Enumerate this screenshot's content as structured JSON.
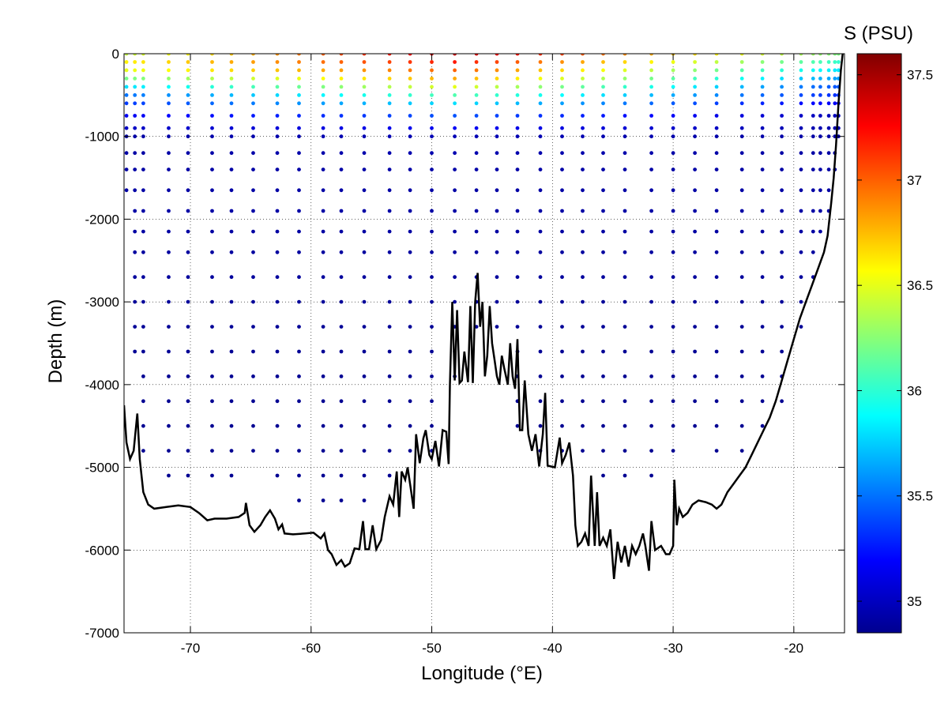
{
  "chart_data": {
    "type": "scatter",
    "xlabel": "Longitude (°E)",
    "ylabel": "Depth (m)",
    "colorbar_label": "S (PSU)",
    "xlim": [
      -75.5,
      -15.8
    ],
    "ylim": [
      -7000,
      0
    ],
    "xticks": [
      -70,
      -60,
      -50,
      -40,
      -30,
      -20
    ],
    "yticks": [
      0,
      -1000,
      -2000,
      -3000,
      -4000,
      -5000,
      -6000,
      -7000
    ],
    "clim": [
      34.85,
      37.6
    ],
    "cticks": [
      35,
      35.5,
      36,
      36.5,
      37,
      37.5
    ],
    "grid": true,
    "colormap": "jet",
    "stations": [
      -75.3,
      -74.6,
      -73.9,
      -71.8,
      -70.2,
      -68.2,
      -66.6,
      -64.8,
      -62.8,
      -61.0,
      -59.0,
      -57.5,
      -55.6,
      -53.5,
      -51.8,
      -50.0,
      -48.1,
      -46.3,
      -44.6,
      -42.9,
      -41.0,
      -39.2,
      -37.5,
      -35.8,
      -34.0,
      -31.8,
      -30.0,
      -28.2,
      -26.4,
      -24.3,
      -22.6,
      -21.0,
      -19.4,
      -18.4,
      -17.8,
      -17.1,
      -16.6,
      -16.3
    ],
    "station_max_depth": [
      1700,
      3750,
      5000,
      5230,
      5230,
      5230,
      5230,
      5020,
      5220,
      5480,
      5620,
      5750,
      5750,
      5250,
      5000,
      4820,
      3900,
      3500,
      3500,
      4520,
      4800,
      4900,
      4950,
      5350,
      5250,
      5200,
      4800,
      4700,
      4950,
      4800,
      4600,
      4280,
      3500,
      2800,
      2350,
      1950,
      1500,
      1000
    ],
    "salinity_profile": {
      "depths": [
        0,
        100,
        200,
        300,
        400,
        500,
        700,
        1000,
        1500,
        2000,
        3000,
        4000,
        5000,
        6000
      ],
      "surface_salinity_east": [
        36.2,
        36.0,
        35.8,
        35.6,
        35.4,
        35.3,
        35.0,
        34.95,
        34.95,
        34.95,
        34.92,
        34.9,
        34.9,
        34.9
      ],
      "surface_salinity_center": [
        37.4,
        37.2,
        37.0,
        36.8,
        36.5,
        36.1,
        35.5,
        35.0,
        34.95,
        34.95,
        34.92,
        34.9,
        34.9,
        34.9
      ],
      "surface_salinity_west": [
        36.4,
        36.6,
        36.5,
        36.2,
        35.8,
        35.5,
        35.2,
        34.95,
        34.95,
        34.95,
        34.92,
        34.9,
        34.9,
        34.9
      ]
    },
    "bathymetry": [
      [
        -75.5,
        -4250
      ],
      [
        -75.3,
        -4700
      ],
      [
        -75.0,
        -4900
      ],
      [
        -74.7,
        -4800
      ],
      [
        -74.4,
        -4350
      ],
      [
        -74.2,
        -4900
      ],
      [
        -73.9,
        -5300
      ],
      [
        -73.5,
        -5450
      ],
      [
        -73.0,
        -5500
      ],
      [
        -72.0,
        -5480
      ],
      [
        -71.0,
        -5460
      ],
      [
        -70.0,
        -5480
      ],
      [
        -69.3,
        -5550
      ],
      [
        -68.6,
        -5640
      ],
      [
        -68.0,
        -5620
      ],
      [
        -67.0,
        -5620
      ],
      [
        -66.0,
        -5600
      ],
      [
        -65.5,
        -5550
      ],
      [
        -65.4,
        -5430
      ],
      [
        -65.1,
        -5700
      ],
      [
        -64.7,
        -5780
      ],
      [
        -64.2,
        -5700
      ],
      [
        -63.8,
        -5600
      ],
      [
        -63.4,
        -5520
      ],
      [
        -63.0,
        -5620
      ],
      [
        -62.7,
        -5750
      ],
      [
        -62.4,
        -5690
      ],
      [
        -62.2,
        -5800
      ],
      [
        -61.5,
        -5810
      ],
      [
        -60.5,
        -5800
      ],
      [
        -59.8,
        -5790
      ],
      [
        -59.2,
        -5860
      ],
      [
        -58.9,
        -5800
      ],
      [
        -58.6,
        -6000
      ],
      [
        -58.3,
        -6050
      ],
      [
        -57.9,
        -6180
      ],
      [
        -57.5,
        -6120
      ],
      [
        -57.2,
        -6200
      ],
      [
        -56.8,
        -6160
      ],
      [
        -56.4,
        -5980
      ],
      [
        -56.0,
        -5990
      ],
      [
        -55.7,
        -5650
      ],
      [
        -55.5,
        -5990
      ],
      [
        -55.2,
        -5990
      ],
      [
        -54.9,
        -5700
      ],
      [
        -54.6,
        -5990
      ],
      [
        -54.2,
        -5880
      ],
      [
        -53.9,
        -5600
      ],
      [
        -53.5,
        -5350
      ],
      [
        -53.2,
        -5450
      ],
      [
        -52.9,
        -5050
      ],
      [
        -52.7,
        -5600
      ],
      [
        -52.5,
        -5050
      ],
      [
        -52.2,
        -5150
      ],
      [
        -52.0,
        -5000
      ],
      [
        -51.7,
        -5300
      ],
      [
        -51.5,
        -5500
      ],
      [
        -51.3,
        -4600
      ],
      [
        -51.0,
        -4950
      ],
      [
        -50.7,
        -4650
      ],
      [
        -50.5,
        -4550
      ],
      [
        -50.2,
        -4850
      ],
      [
        -50.0,
        -4900
      ],
      [
        -49.7,
        -4680
      ],
      [
        -49.4,
        -4990
      ],
      [
        -49.1,
        -4550
      ],
      [
        -48.8,
        -4570
      ],
      [
        -48.6,
        -4960
      ],
      [
        -48.5,
        -4000
      ],
      [
        -48.3,
        -3000
      ],
      [
        -48.1,
        -3950
      ],
      [
        -47.9,
        -3100
      ],
      [
        -47.7,
        -3980
      ],
      [
        -47.5,
        -3950
      ],
      [
        -47.3,
        -3600
      ],
      [
        -47.0,
        -3970
      ],
      [
        -46.8,
        -3050
      ],
      [
        -46.6,
        -3980
      ],
      [
        -46.4,
        -3000
      ],
      [
        -46.2,
        -2650
      ],
      [
        -46.0,
        -3300
      ],
      [
        -45.8,
        -3000
      ],
      [
        -45.6,
        -3900
      ],
      [
        -45.4,
        -3650
      ],
      [
        -45.2,
        -3050
      ],
      [
        -45.0,
        -3500
      ],
      [
        -44.8,
        -3700
      ],
      [
        -44.6,
        -3900
      ],
      [
        -44.4,
        -4000
      ],
      [
        -44.2,
        -3650
      ],
      [
        -44.0,
        -3800
      ],
      [
        -43.7,
        -4000
      ],
      [
        -43.5,
        -3500
      ],
      [
        -43.3,
        -3900
      ],
      [
        -43.1,
        -4050
      ],
      [
        -42.9,
        -3450
      ],
      [
        -42.7,
        -4550
      ],
      [
        -42.5,
        -4550
      ],
      [
        -42.3,
        -3950
      ],
      [
        -42.0,
        -4600
      ],
      [
        -41.7,
        -4800
      ],
      [
        -41.4,
        -4600
      ],
      [
        -41.1,
        -4990
      ],
      [
        -40.8,
        -4600
      ],
      [
        -40.6,
        -4100
      ],
      [
        -40.4,
        -4980
      ],
      [
        -40.1,
        -4990
      ],
      [
        -39.8,
        -5000
      ],
      [
        -39.4,
        -4640
      ],
      [
        -39.2,
        -4950
      ],
      [
        -38.9,
        -4850
      ],
      [
        -38.6,
        -4700
      ],
      [
        -38.3,
        -5100
      ],
      [
        -38.1,
        -5700
      ],
      [
        -37.9,
        -5950
      ],
      [
        -37.6,
        -5900
      ],
      [
        -37.3,
        -5800
      ],
      [
        -37.0,
        -5950
      ],
      [
        -36.8,
        -5100
      ],
      [
        -36.5,
        -5950
      ],
      [
        -36.3,
        -5300
      ],
      [
        -36.1,
        -5950
      ],
      [
        -35.8,
        -5850
      ],
      [
        -35.5,
        -5950
      ],
      [
        -35.2,
        -5750
      ],
      [
        -34.9,
        -6350
      ],
      [
        -34.6,
        -5900
      ],
      [
        -34.3,
        -6150
      ],
      [
        -34.0,
        -5950
      ],
      [
        -33.7,
        -6200
      ],
      [
        -33.4,
        -5950
      ],
      [
        -33.1,
        -6050
      ],
      [
        -32.8,
        -5950
      ],
      [
        -32.5,
        -5800
      ],
      [
        -32.3,
        -5950
      ],
      [
        -32.0,
        -6250
      ],
      [
        -31.8,
        -5650
      ],
      [
        -31.5,
        -6000
      ],
      [
        -31.0,
        -5950
      ],
      [
        -30.6,
        -6050
      ],
      [
        -30.3,
        -6050
      ],
      [
        -30.0,
        -5950
      ],
      [
        -29.9,
        -5150
      ],
      [
        -29.7,
        -5700
      ],
      [
        -29.5,
        -5500
      ],
      [
        -29.2,
        -5600
      ],
      [
        -28.8,
        -5550
      ],
      [
        -28.4,
        -5450
      ],
      [
        -27.9,
        -5400
      ],
      [
        -27.3,
        -5420
      ],
      [
        -26.8,
        -5450
      ],
      [
        -26.4,
        -5500
      ],
      [
        -26.0,
        -5450
      ],
      [
        -25.5,
        -5300
      ],
      [
        -25.0,
        -5200
      ],
      [
        -24.5,
        -5100
      ],
      [
        -24.0,
        -5000
      ],
      [
        -23.5,
        -4850
      ],
      [
        -23.0,
        -4700
      ],
      [
        -22.5,
        -4550
      ],
      [
        -22.0,
        -4400
      ],
      [
        -21.5,
        -4200
      ],
      [
        -21.0,
        -3950
      ],
      [
        -20.5,
        -3700
      ],
      [
        -20.0,
        -3450
      ],
      [
        -19.5,
        -3200
      ],
      [
        -19.0,
        -3000
      ],
      [
        -18.5,
        -2800
      ],
      [
        -18.0,
        -2600
      ],
      [
        -17.5,
        -2400
      ],
      [
        -17.2,
        -2200
      ],
      [
        -16.9,
        -1800
      ],
      [
        -16.7,
        -1500
      ],
      [
        -16.5,
        -1100
      ],
      [
        -16.3,
        -600
      ],
      [
        -16.1,
        -200
      ],
      [
        -15.95,
        0
      ]
    ]
  }
}
